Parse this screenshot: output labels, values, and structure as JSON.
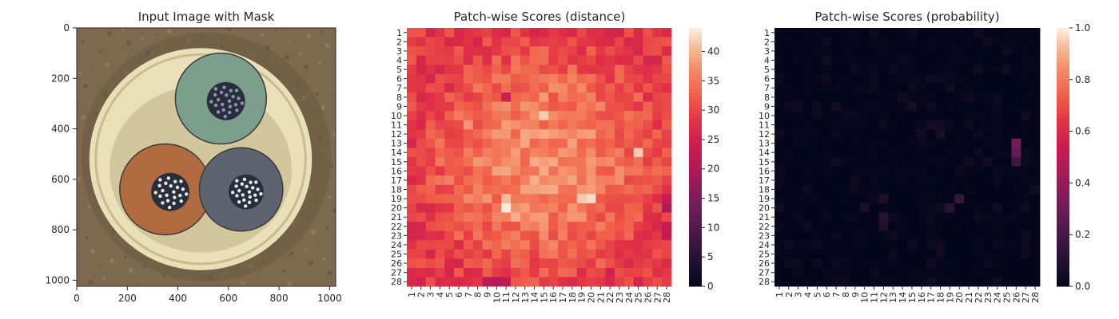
{
  "chart_data": [
    {
      "type": "image",
      "title": "Input Image with Mask",
      "xlim": [
        0,
        1024
      ],
      "ylim": [
        1024,
        0
      ],
      "xticks": [
        0,
        200,
        400,
        600,
        800,
        1000
      ],
      "yticks": [
        0,
        200,
        400,
        600,
        800,
        1000
      ],
      "objects": [
        {
          "name": "background-disc",
          "cx": 512,
          "cy": 512,
          "r": 510
        },
        {
          "name": "light-ring",
          "cx": 490,
          "cy": 520,
          "r": 440
        },
        {
          "name": "green-wire",
          "cx": 570,
          "cy": 280,
          "r": 180,
          "color": "#7c9e8c"
        },
        {
          "name": "brown-wire",
          "cx": 350,
          "cy": 640,
          "r": 180,
          "color": "#b06b40"
        },
        {
          "name": "gray-wire",
          "cx": 650,
          "cy": 640,
          "r": 165,
          "color": "#5d6470"
        }
      ],
      "colors": {
        "background": "#7d6a4e",
        "ring": "#e9dfb8",
        "green": "#7c9e8c",
        "brown": "#b06b40",
        "gray": "#5d6470",
        "core": "#2a2e3a"
      }
    },
    {
      "type": "heatmap",
      "title": "Patch-wise Scores (distance)",
      "grid": [
        28,
        28
      ],
      "row_labels": [
        "1",
        "2",
        "3",
        "4",
        "5",
        "6",
        "7",
        "8",
        "9",
        "10",
        "11",
        "12",
        "13",
        "14",
        "15",
        "16",
        "17",
        "18",
        "19",
        "20",
        "21",
        "22",
        "23",
        "24",
        "25",
        "26",
        "27",
        "28"
      ],
      "col_labels": [
        "1",
        "2",
        "3",
        "4",
        "5",
        "6",
        "7",
        "8",
        "9",
        "10",
        "11",
        "12",
        "13",
        "14",
        "15",
        "16",
        "17",
        "18",
        "19",
        "20",
        "21",
        "22",
        "23",
        "24",
        "25",
        "26",
        "27",
        "28"
      ],
      "colormap": "rocket",
      "vmin": 0,
      "vmax": 44,
      "colorbar_ticks": [
        0,
        5,
        10,
        15,
        20,
        25,
        30,
        35,
        40
      ],
      "base_value": 29,
      "hotspots": [
        {
          "row": 10,
          "col": 15,
          "value": 42
        },
        {
          "row": 13,
          "col": 18,
          "value": 39
        },
        {
          "row": 14,
          "col": 25,
          "value": 42
        },
        {
          "row": 19,
          "col": 11,
          "value": 41
        },
        {
          "row": 20,
          "col": 11,
          "value": 44
        },
        {
          "row": 19,
          "col": 19,
          "value": 42
        },
        {
          "row": 19,
          "col": 20,
          "value": 43
        },
        {
          "row": 21,
          "col": 12,
          "value": 40
        },
        {
          "row": 18,
          "col": 14,
          "value": 39
        },
        {
          "row": 11,
          "col": 7,
          "value": 38
        }
      ],
      "lowspots": [
        {
          "row": 28,
          "col": 9,
          "value": 22
        },
        {
          "row": 28,
          "col": 10,
          "value": 21
        },
        {
          "row": 28,
          "col": 11,
          "value": 23
        },
        {
          "row": 20,
          "col": 28,
          "value": 20
        },
        {
          "row": 19,
          "col": 28,
          "value": 24
        },
        {
          "row": 23,
          "col": 28,
          "value": 23
        },
        {
          "row": 22,
          "col": 28,
          "value": 24
        },
        {
          "row": 8,
          "col": 11,
          "value": 25
        },
        {
          "row": 1,
          "col": 14,
          "value": 26
        },
        {
          "row": 1,
          "col": 22,
          "value": 26
        }
      ]
    },
    {
      "type": "heatmap",
      "title": "Patch-wise Scores (probability)",
      "grid": [
        28,
        28
      ],
      "row_labels": [
        "1",
        "2",
        "3",
        "4",
        "5",
        "6",
        "7",
        "8",
        "9",
        "10",
        "11",
        "12",
        "13",
        "14",
        "15",
        "16",
        "17",
        "18",
        "19",
        "20",
        "21",
        "22",
        "23",
        "24",
        "25",
        "26",
        "27",
        "28"
      ],
      "col_labels": [
        "1",
        "2",
        "3",
        "4",
        "5",
        "6",
        "7",
        "8",
        "9",
        "10",
        "11",
        "12",
        "13",
        "14",
        "15",
        "16",
        "17",
        "18",
        "19",
        "20",
        "21",
        "22",
        "23",
        "24",
        "25",
        "26",
        "27",
        "28"
      ],
      "colormap": "rocket",
      "vmin": 0.0,
      "vmax": 1.0,
      "colorbar_ticks": [
        "0.0",
        "0.2",
        "0.4",
        "0.6",
        "0.8",
        "1.0"
      ],
      "base_value": 0.0,
      "hotspots": [
        {
          "row": 13,
          "col": 26,
          "value": 0.32
        },
        {
          "row": 14,
          "col": 26,
          "value": 0.28
        },
        {
          "row": 15,
          "col": 26,
          "value": 0.18
        },
        {
          "row": 19,
          "col": 20,
          "value": 0.16
        },
        {
          "row": 20,
          "col": 19,
          "value": 0.12
        },
        {
          "row": 21,
          "col": 12,
          "value": 0.11
        },
        {
          "row": 22,
          "col": 12,
          "value": 0.09
        },
        {
          "row": 19,
          "col": 12,
          "value": 0.09
        },
        {
          "row": 20,
          "col": 10,
          "value": 0.08
        },
        {
          "row": 12,
          "col": 18,
          "value": 0.07
        },
        {
          "row": 11,
          "col": 17,
          "value": 0.06
        },
        {
          "row": 9,
          "col": 15,
          "value": 0.06
        },
        {
          "row": 9,
          "col": 7,
          "value": 0.05
        },
        {
          "row": 4,
          "col": 6,
          "value": 0.05
        }
      ]
    }
  ]
}
